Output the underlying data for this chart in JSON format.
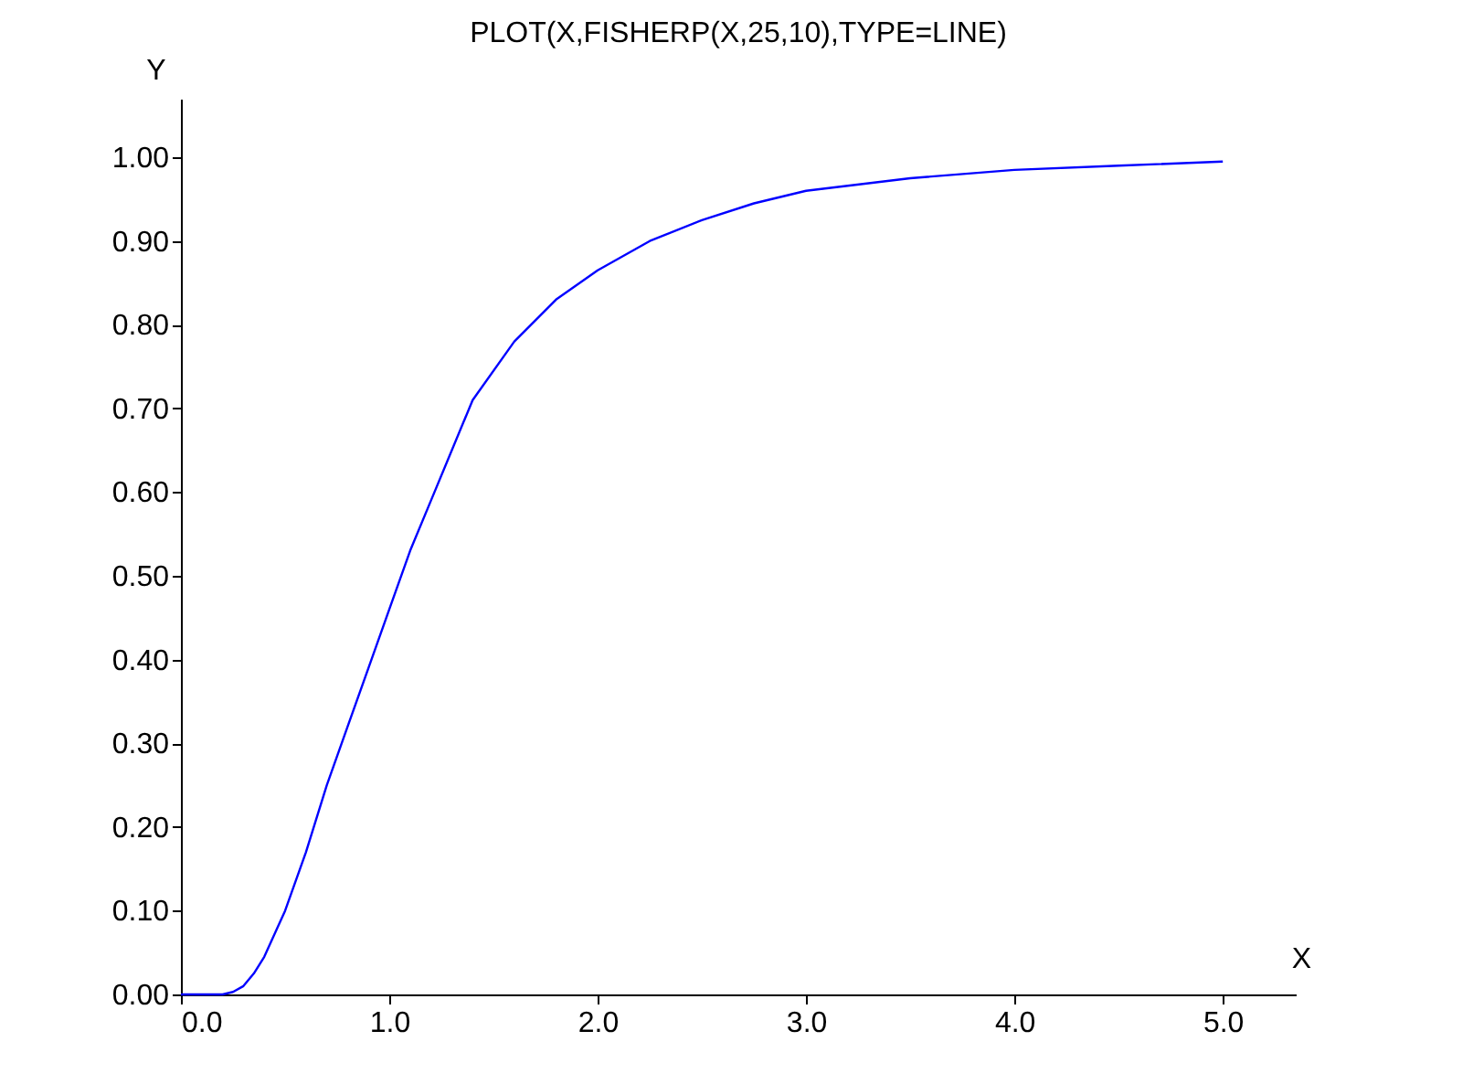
{
  "chart_data": {
    "type": "line",
    "title": "PLOT(X,FISHERP(X,25,10),TYPE=LINE)",
    "xlabel": "X",
    "ylabel": "Y",
    "x": [
      0,
      0.2,
      0.25,
      0.3,
      0.35,
      0.4,
      0.5,
      0.6,
      0.7,
      0.8,
      0.9,
      1.0,
      1.1,
      1.2,
      1.4,
      1.6,
      1.8,
      2.0,
      2.25,
      2.5,
      2.75,
      3.0,
      3.5,
      4.0,
      4.5,
      5.0
    ],
    "series": [
      {
        "color": "#0000ff",
        "values": [
          0,
          0,
          0.003,
          0.01,
          0.025,
          0.045,
          0.1,
          0.17,
          0.25,
          0.32,
          0.39,
          0.46,
          0.53,
          0.59,
          0.71,
          0.78,
          0.83,
          0.865,
          0.9,
          0.925,
          0.945,
          0.96,
          0.975,
          0.985,
          0.99,
          0.995
        ]
      }
    ],
    "xlim": [
      0,
      5.35
    ],
    "ylim": [
      0,
      1.07
    ],
    "xticks": [
      {
        "value": 0,
        "label": "0.0"
      },
      {
        "value": 1,
        "label": "1.0"
      },
      {
        "value": 2,
        "label": "2.0"
      },
      {
        "value": 3,
        "label": "3.0"
      },
      {
        "value": 4,
        "label": "4.0"
      },
      {
        "value": 5,
        "label": "5.0"
      }
    ],
    "yticks": [
      {
        "value": 0,
        "label": "0.00"
      },
      {
        "value": 0.1,
        "label": "0.10"
      },
      {
        "value": 0.2,
        "label": "0.20"
      },
      {
        "value": 0.3,
        "label": "0.30"
      },
      {
        "value": 0.4,
        "label": "0.40"
      },
      {
        "value": 0.5,
        "label": "0.50"
      },
      {
        "value": 0.6,
        "label": "0.60"
      },
      {
        "value": 0.7,
        "label": "0.70"
      },
      {
        "value": 0.8,
        "label": "0.80"
      },
      {
        "value": 0.9,
        "label": "0.90"
      },
      {
        "value": 1,
        "label": "1.00"
      }
    ],
    "grid": false,
    "marker": "none",
    "line_style": "solid"
  }
}
